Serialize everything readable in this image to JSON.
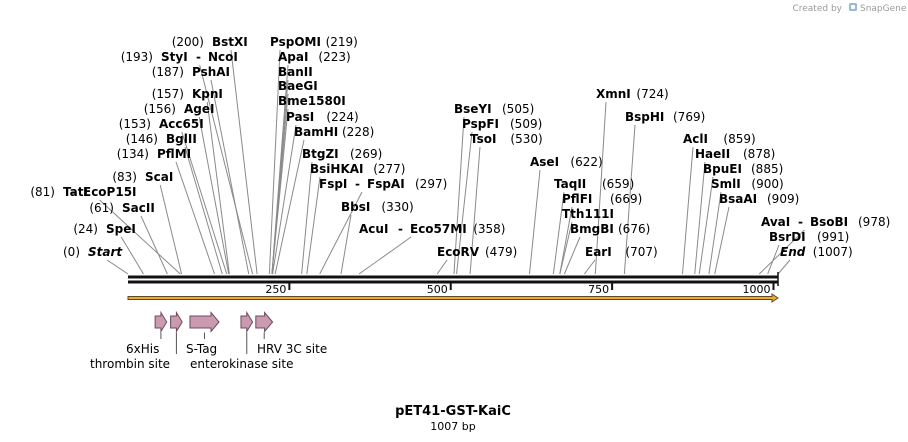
{
  "credit": {
    "prefix": "Created by",
    "brand": "SnapGene"
  },
  "map": {
    "title": "pET41-GST-KaiC",
    "length_label": "1007 bp",
    "length_bp": 1007,
    "ticks": [
      {
        "pos": 250,
        "label": "250"
      },
      {
        "pos": 500,
        "label": "500"
      },
      {
        "pos": 750,
        "label": "750"
      },
      {
        "pos": 1000,
        "label": "1000"
      }
    ],
    "colors": {
      "backbone": "#111111",
      "arrow_fill": "#f0a830",
      "arrow_stroke": "#5a4a2a",
      "feature_fill": "#c99ab0",
      "feature_stroke": "#6e4a5c"
    },
    "sites": [
      {
        "name": "Start",
        "pos": "(0)",
        "bp": 0,
        "italic": true
      },
      {
        "name": "SpeI",
        "pos": "(24)",
        "bp": 24
      },
      {
        "name": "SacII",
        "pos": "(61)",
        "bp": 61
      },
      {
        "name": "TatI",
        "pos": "(81)",
        "bp": 81,
        "join": "EcoP15I"
      },
      {
        "name": "ScaI",
        "pos": "(83)",
        "bp": 83
      },
      {
        "name": "PflMI",
        "pos": "(134)",
        "bp": 134
      },
      {
        "name": "BglII",
        "pos": "(146)",
        "bp": 146
      },
      {
        "name": "Acc65I",
        "pos": "(153)",
        "bp": 153
      },
      {
        "name": "AgeI",
        "pos": "(156)",
        "bp": 156
      },
      {
        "name": "KpnI",
        "pos": "(157)",
        "bp": 157
      },
      {
        "name": "PshAI",
        "pos": "(187)",
        "bp": 187
      },
      {
        "name": "StyI",
        "pos": "(193)",
        "bp": 193,
        "join": "NcoI"
      },
      {
        "name": "BstXI",
        "pos": "(200)",
        "bp": 200
      },
      {
        "name": "PspOMI",
        "pos": "(219)",
        "bp": 219
      },
      {
        "name": "ApaI",
        "pos": "(223)",
        "bp": 223
      },
      {
        "name": "BanII",
        "pos": "",
        "bp": 223
      },
      {
        "name": "BaeGI",
        "pos": "",
        "bp": 223
      },
      {
        "name": "Bme1580I",
        "pos": "",
        "bp": 223
      },
      {
        "name": "PasI",
        "pos": "(224)",
        "bp": 224
      },
      {
        "name": "BamHI",
        "pos": "(228)",
        "bp": 228
      },
      {
        "name": "BtgZI",
        "pos": "(269)",
        "bp": 269
      },
      {
        "name": "BsiHKAI",
        "pos": "(277)",
        "bp": 277
      },
      {
        "name": "FspI",
        "pos": "(297)",
        "bp": 297,
        "join": "FspAI"
      },
      {
        "name": "BbsI",
        "pos": "(330)",
        "bp": 330
      },
      {
        "name": "AcuI",
        "pos": "(358)",
        "bp": 358,
        "join": "Eco57MI"
      },
      {
        "name": "EcoRV",
        "pos": "(479)",
        "bp": 479
      },
      {
        "name": "BseYI",
        "pos": "(505)",
        "bp": 505
      },
      {
        "name": "PspFI",
        "pos": "(509)",
        "bp": 509
      },
      {
        "name": "TsoI",
        "pos": "(530)",
        "bp": 530
      },
      {
        "name": "AseI",
        "pos": "(622)",
        "bp": 622
      },
      {
        "name": "TaqII",
        "pos": "(659)",
        "bp": 659
      },
      {
        "name": "PflFI",
        "pos": "(669)",
        "bp": 669
      },
      {
        "name": "Tth111I",
        "pos": "",
        "bp": 669
      },
      {
        "name": "BmgBI",
        "pos": "(676)",
        "bp": 676
      },
      {
        "name": "EarI",
        "pos": "(707)",
        "bp": 707
      },
      {
        "name": "XmnI",
        "pos": "(724)",
        "bp": 724
      },
      {
        "name": "BspHI",
        "pos": "(769)",
        "bp": 769
      },
      {
        "name": "AclI",
        "pos": "(859)",
        "bp": 859
      },
      {
        "name": "HaeII",
        "pos": "(878)",
        "bp": 878
      },
      {
        "name": "BpuEI",
        "pos": "(885)",
        "bp": 885
      },
      {
        "name": "SmlI",
        "pos": "(900)",
        "bp": 900
      },
      {
        "name": "BsaAI",
        "pos": "(909)",
        "bp": 909
      },
      {
        "name": "AvaI",
        "pos": "(978)",
        "bp": 978,
        "join": "BsoBI"
      },
      {
        "name": "BsrDI",
        "pos": "(991)",
        "bp": 991
      },
      {
        "name": "End",
        "pos": "(1007)",
        "bp": 1007,
        "italic": true
      }
    ],
    "features": [
      {
        "label": "6xHis",
        "start": 42,
        "end": 60
      },
      {
        "label": "thrombin site",
        "start": 66,
        "end": 84
      },
      {
        "label": "S-Tag",
        "start": 96,
        "end": 141
      },
      {
        "label": "enterokinase site",
        "start": 175,
        "end": 193
      },
      {
        "label": "HRV 3C site",
        "start": 198,
        "end": 224
      }
    ]
  }
}
